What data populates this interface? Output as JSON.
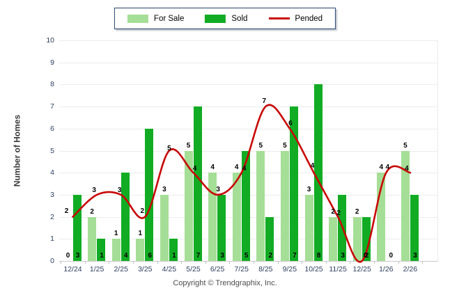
{
  "chart_data": {
    "type": "bar",
    "categories": [
      "12/24",
      "1/25",
      "2/25",
      "3/25",
      "4/25",
      "5/25",
      "6/25",
      "7/25",
      "8/25",
      "9/25",
      "10/25",
      "11/25",
      "12/25",
      "1/26",
      "2/26"
    ],
    "series": [
      {
        "name": "For Sale",
        "type": "bar",
        "color": "#a5de96",
        "values": [
          0,
          2,
          1,
          1,
          3,
          5,
          4,
          4,
          5,
          5,
          3,
          2,
          2,
          4,
          5
        ]
      },
      {
        "name": "Sold",
        "type": "bar",
        "color": "#11ac24",
        "values": [
          3,
          1,
          4,
          6,
          1,
          7,
          3,
          5,
          2,
          7,
          8,
          3,
          2,
          0,
          3
        ]
      },
      {
        "name": "Pended",
        "type": "line",
        "color": "#c80707",
        "values": [
          2,
          3,
          3,
          2,
          5,
          4,
          3,
          4,
          7,
          6,
          4,
          2,
          0,
          4,
          4
        ]
      }
    ],
    "title": "",
    "xlabel": "",
    "ylabel": "Number of Homes",
    "ylim": [
      0,
      10
    ],
    "ytick_step": 1,
    "grid": true,
    "legend_position": "top-center",
    "value_labels": true
  },
  "footer": {
    "copyright": "Copyright © Trendgraphix, Inc."
  },
  "colors": {
    "grid": "#ececec",
    "axis": "#c9c9c9",
    "tick_text": "#2d3e5f",
    "value_text": "#000000",
    "legend_border": "#27456f",
    "background": "#ffffff"
  }
}
